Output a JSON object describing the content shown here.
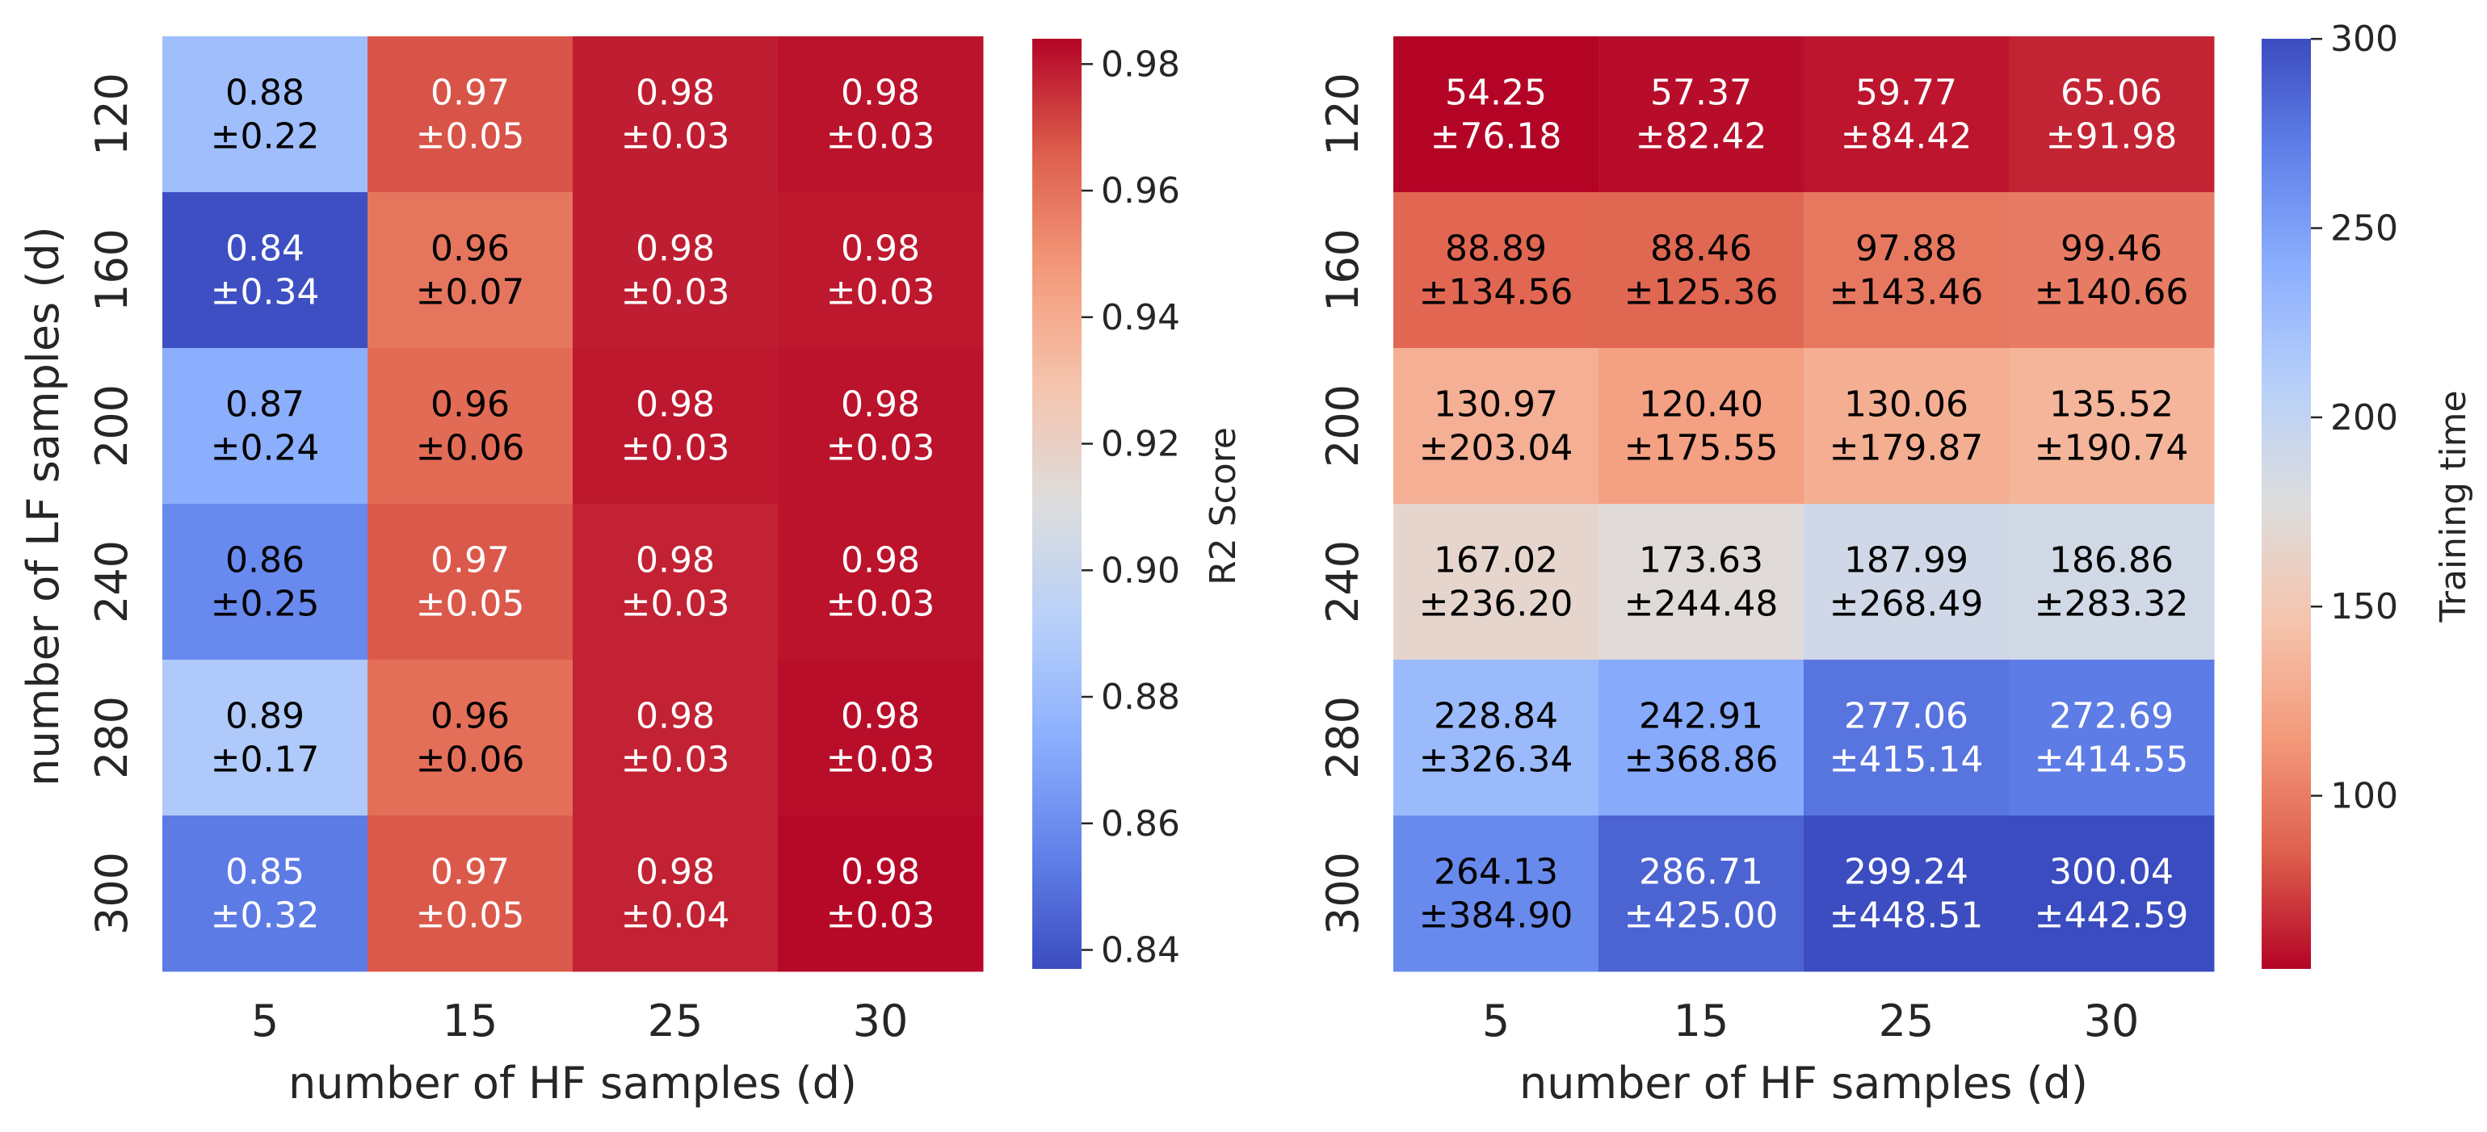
{
  "chart_data": [
    {
      "type": "heatmap",
      "xlabel": "number of HF samples (d)",
      "ylabel": "number of LF samples (d)",
      "x_categories": [
        "5",
        "15",
        "25",
        "30"
      ],
      "y_categories": [
        "120",
        "160",
        "200",
        "240",
        "280",
        "300"
      ],
      "colormap": "coolwarm",
      "colorbar_label": "R2 Score",
      "colorbar_range": [
        0.837,
        0.984
      ],
      "colorbar_ticks": [
        "0.84",
        "0.86",
        "0.88",
        "0.90",
        "0.92",
        "0.94",
        "0.96",
        "0.98"
      ],
      "colorbar_tick_values": [
        0.84,
        0.86,
        0.88,
        0.9,
        0.92,
        0.94,
        0.96,
        0.98
      ],
      "values": [
        [
          0.882,
          0.968,
          0.979,
          0.981
        ],
        [
          0.838,
          0.959,
          0.979,
          0.98
        ],
        [
          0.873,
          0.962,
          0.98,
          0.981
        ],
        [
          0.858,
          0.967,
          0.978,
          0.981
        ],
        [
          0.888,
          0.961,
          0.978,
          0.982
        ],
        [
          0.853,
          0.967,
          0.978,
          0.983
        ]
      ],
      "means": [
        [
          "0.88",
          "0.97",
          "0.98",
          "0.98"
        ],
        [
          "0.84",
          "0.96",
          "0.98",
          "0.98"
        ],
        [
          "0.87",
          "0.96",
          "0.98",
          "0.98"
        ],
        [
          "0.86",
          "0.97",
          "0.98",
          "0.98"
        ],
        [
          "0.89",
          "0.96",
          "0.98",
          "0.98"
        ],
        [
          "0.85",
          "0.97",
          "0.98",
          "0.98"
        ]
      ],
      "stds": [
        [
          "±0.22",
          "±0.05",
          "±0.03",
          "±0.03"
        ],
        [
          "±0.34",
          "±0.07",
          "±0.03",
          "±0.03"
        ],
        [
          "±0.24",
          "±0.06",
          "±0.03",
          "±0.03"
        ],
        [
          "±0.25",
          "±0.05",
          "±0.03",
          "±0.03"
        ],
        [
          "±0.17",
          "±0.06",
          "±0.03",
          "±0.03"
        ],
        [
          "±0.32",
          "±0.05",
          "±0.04",
          "±0.03"
        ]
      ]
    },
    {
      "type": "heatmap",
      "xlabel": "number of HF samples (d)",
      "ylabel": "",
      "x_categories": [
        "5",
        "15",
        "25",
        "30"
      ],
      "y_categories": [
        "120",
        "160",
        "200",
        "240",
        "280",
        "300"
      ],
      "colormap": "coolwarm_r",
      "colorbar_label": "Training time",
      "colorbar_range": [
        54.25,
        300.04
      ],
      "colorbar_ticks": [
        "100",
        "150",
        "200",
        "250",
        "300"
      ],
      "colorbar_tick_values": [
        100,
        150,
        200,
        250,
        300
      ],
      "values": [
        [
          54.25,
          57.37,
          59.77,
          65.06
        ],
        [
          88.89,
          88.46,
          97.88,
          99.46
        ],
        [
          130.97,
          120.4,
          130.06,
          135.52
        ],
        [
          167.02,
          173.63,
          187.99,
          186.86
        ],
        [
          228.84,
          242.91,
          277.06,
          272.69
        ],
        [
          264.13,
          286.71,
          299.24,
          300.04
        ]
      ],
      "means": [
        [
          "54.25",
          "57.37",
          "59.77",
          "65.06"
        ],
        [
          "88.89",
          "88.46",
          "97.88",
          "99.46"
        ],
        [
          "130.97",
          "120.40",
          "130.06",
          "135.52"
        ],
        [
          "167.02",
          "173.63",
          "187.99",
          "186.86"
        ],
        [
          "228.84",
          "242.91",
          "277.06",
          "272.69"
        ],
        [
          "264.13",
          "286.71",
          "299.24",
          "300.04"
        ]
      ],
      "stds": [
        [
          "±76.18",
          "±82.42",
          "±84.42",
          "±91.98"
        ],
        [
          "±134.56",
          "±125.36",
          "±143.46",
          "±140.66"
        ],
        [
          "±203.04",
          "±175.55",
          "±179.87",
          "±190.74"
        ],
        [
          "±236.20",
          "±244.48",
          "±268.49",
          "±283.32"
        ],
        [
          "±326.34",
          "±368.86",
          "±415.14",
          "±414.55"
        ],
        [
          "±384.90",
          "±425.00",
          "±448.51",
          "±442.59"
        ]
      ]
    }
  ]
}
